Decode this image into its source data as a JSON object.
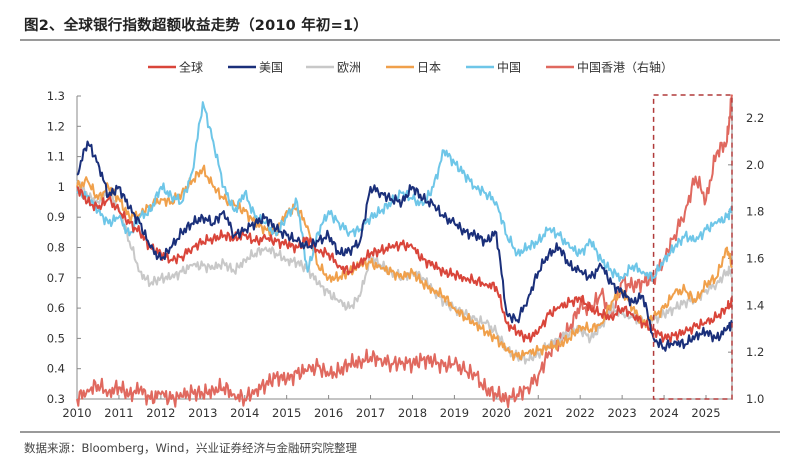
{
  "title": "图2、全球银行指数超额收益走势（2010 年初=1）",
  "source": "数据来源：Bloomberg，Wind，兴业证券经济与金融研究院整理",
  "chart_data": {
    "type": "line",
    "title": "图2、全球银行指数超额收益走势（2010 年初=1）",
    "xlabel": "",
    "ylabel": "",
    "x_ticks": [
      "2010",
      "2011",
      "2012",
      "2013",
      "2014",
      "2015",
      "2016",
      "2017",
      "2018",
      "2019",
      "2020",
      "2021",
      "2022",
      "2023",
      "2024",
      "2025"
    ],
    "xlim": [
      2010,
      2025.62
    ],
    "ylim_left": [
      0.3,
      1.3
    ],
    "yticks_left": [
      "0.3",
      "0.4",
      "0.5",
      "0.6",
      "0.7",
      "0.8",
      "0.9",
      "1",
      "1.1",
      "1.2",
      "1.3"
    ],
    "ylim_right": [
      1.0,
      2.2
    ],
    "yticks_right": [
      "1.0",
      "1.2",
      "1.4",
      "1.6",
      "1.8",
      "2.0",
      "2.2"
    ],
    "legend_position": "top-center",
    "grid": false,
    "highlight_box": {
      "x_range": [
        2023.75,
        2025.62
      ],
      "style": "dashed",
      "color": "#b03a3a"
    },
    "x": [
      2010.0,
      2010.25,
      2010.5,
      2010.75,
      2011.0,
      2011.25,
      2011.5,
      2011.75,
      2012.0,
      2012.25,
      2012.5,
      2012.75,
      2013.0,
      2013.25,
      2013.5,
      2013.75,
      2014.0,
      2014.25,
      2014.5,
      2014.75,
      2015.0,
      2015.25,
      2015.5,
      2015.75,
      2016.0,
      2016.25,
      2016.5,
      2016.75,
      2017.0,
      2017.25,
      2017.5,
      2017.75,
      2018.0,
      2018.25,
      2018.5,
      2018.75,
      2019.0,
      2019.25,
      2019.5,
      2019.75,
      2020.0,
      2020.25,
      2020.5,
      2020.75,
      2021.0,
      2021.25,
      2021.5,
      2021.75,
      2022.0,
      2022.25,
      2022.5,
      2022.75,
      2023.0,
      2023.25,
      2023.5,
      2023.75,
      2024.0,
      2024.25,
      2024.5,
      2024.75,
      2025.0,
      2025.25,
      2025.5,
      2025.62
    ],
    "series": [
      {
        "name": "全球",
        "axis": "left",
        "color": "#d9453a",
        "values": [
          1.0,
          0.95,
          0.93,
          0.96,
          0.92,
          0.88,
          0.85,
          0.8,
          0.78,
          0.76,
          0.77,
          0.8,
          0.82,
          0.83,
          0.84,
          0.83,
          0.84,
          0.82,
          0.83,
          0.82,
          0.81,
          0.8,
          0.83,
          0.79,
          0.78,
          0.74,
          0.72,
          0.75,
          0.78,
          0.79,
          0.8,
          0.81,
          0.8,
          0.76,
          0.74,
          0.72,
          0.71,
          0.7,
          0.69,
          0.68,
          0.67,
          0.55,
          0.52,
          0.5,
          0.52,
          0.58,
          0.6,
          0.62,
          0.63,
          0.6,
          0.58,
          0.57,
          0.6,
          0.58,
          0.55,
          0.53,
          0.5,
          0.51,
          0.52,
          0.54,
          0.55,
          0.57,
          0.6,
          0.62
        ]
      },
      {
        "name": "美国",
        "axis": "left",
        "color": "#1a2f7a",
        "values": [
          1.04,
          1.15,
          1.08,
          0.97,
          1.0,
          0.93,
          0.88,
          0.8,
          0.76,
          0.8,
          0.85,
          0.88,
          0.9,
          0.88,
          0.92,
          0.84,
          0.86,
          0.88,
          0.9,
          0.86,
          0.84,
          0.82,
          0.8,
          0.82,
          0.84,
          0.78,
          0.79,
          0.82,
          1.0,
          0.98,
          0.96,
          0.95,
          1.0,
          0.96,
          0.94,
          0.9,
          0.88,
          0.85,
          0.84,
          0.82,
          0.85,
          0.58,
          0.56,
          0.63,
          0.72,
          0.78,
          0.8,
          0.74,
          0.72,
          0.7,
          0.74,
          0.68,
          0.65,
          0.62,
          0.64,
          0.5,
          0.47,
          0.49,
          0.48,
          0.51,
          0.52,
          0.5,
          0.53,
          0.55
        ]
      },
      {
        "name": "欧洲",
        "axis": "left",
        "color": "#c8c8c8",
        "values": [
          1.02,
          0.97,
          0.95,
          0.98,
          0.93,
          0.82,
          0.72,
          0.68,
          0.7,
          0.7,
          0.72,
          0.74,
          0.74,
          0.73,
          0.75,
          0.72,
          0.76,
          0.78,
          0.8,
          0.78,
          0.76,
          0.75,
          0.73,
          0.68,
          0.65,
          0.62,
          0.6,
          0.64,
          0.77,
          0.74,
          0.72,
          0.7,
          0.72,
          0.7,
          0.66,
          0.62,
          0.6,
          0.58,
          0.56,
          0.55,
          0.52,
          0.46,
          0.44,
          0.43,
          0.45,
          0.48,
          0.5,
          0.52,
          0.53,
          0.5,
          0.54,
          0.6,
          0.58,
          0.57,
          0.55,
          0.56,
          0.58,
          0.6,
          0.62,
          0.63,
          0.66,
          0.68,
          0.72,
          0.72
        ]
      },
      {
        "name": "日本",
        "axis": "left",
        "color": "#f0a04b",
        "values": [
          1.0,
          1.02,
          0.96,
          1.0,
          0.96,
          0.9,
          0.91,
          0.94,
          0.96,
          0.95,
          0.98,
          1.02,
          1.06,
          1.0,
          0.96,
          0.94,
          0.92,
          0.88,
          0.86,
          0.85,
          0.92,
          0.93,
          0.87,
          0.74,
          0.7,
          0.7,
          0.72,
          0.74,
          0.75,
          0.73,
          0.72,
          0.7,
          0.72,
          0.68,
          0.66,
          0.64,
          0.6,
          0.57,
          0.55,
          0.52,
          0.5,
          0.46,
          0.44,
          0.45,
          0.46,
          0.47,
          0.48,
          0.5,
          0.54,
          0.53,
          0.55,
          0.62,
          0.66,
          0.6,
          0.55,
          0.57,
          0.6,
          0.65,
          0.66,
          0.62,
          0.68,
          0.7,
          0.8,
          0.74
        ]
      },
      {
        "name": "中国",
        "axis": "left",
        "color": "#6ec6e8",
        "values": [
          0.98,
          0.97,
          0.92,
          0.88,
          0.9,
          0.84,
          0.9,
          0.92,
          1.0,
          0.97,
          0.95,
          1.05,
          1.28,
          1.15,
          1.0,
          0.92,
          0.98,
          0.9,
          0.88,
          0.84,
          0.9,
          0.95,
          0.72,
          0.85,
          0.92,
          0.88,
          0.85,
          0.86,
          0.9,
          0.92,
          0.95,
          0.98,
          0.96,
          0.94,
          1.0,
          1.12,
          1.08,
          1.04,
          1.0,
          0.98,
          0.95,
          0.84,
          0.78,
          0.8,
          0.82,
          0.86,
          0.84,
          0.8,
          0.78,
          0.82,
          0.76,
          0.72,
          0.7,
          0.74,
          0.72,
          0.7,
          0.76,
          0.8,
          0.84,
          0.82,
          0.86,
          0.88,
          0.9,
          0.93
        ]
      },
      {
        "name": "中国香港（右轴）",
        "axis": "right",
        "color": "#e0695f",
        "values": [
          1.0,
          1.04,
          1.06,
          1.03,
          1.05,
          1.02,
          1.04,
          1.0,
          1.02,
          1.0,
          1.01,
          1.03,
          1.02,
          1.04,
          1.05,
          1.02,
          1.0,
          1.04,
          1.06,
          1.1,
          1.08,
          1.11,
          1.12,
          1.14,
          1.1,
          1.12,
          1.15,
          1.16,
          1.18,
          1.17,
          1.15,
          1.16,
          1.15,
          1.17,
          1.16,
          1.14,
          1.15,
          1.12,
          1.1,
          1.04,
          1.02,
          1.0,
          1.02,
          1.05,
          1.1,
          1.2,
          1.25,
          1.3,
          1.4,
          1.38,
          1.45,
          1.35,
          1.5,
          1.48,
          1.5,
          1.52,
          1.6,
          1.7,
          1.8,
          1.95,
          1.85,
          2.05,
          2.1,
          2.3
        ]
      }
    ]
  },
  "legend": [
    {
      "label": "全球",
      "color": "#d9453a"
    },
    {
      "label": "美国",
      "color": "#1a2f7a"
    },
    {
      "label": "欧洲",
      "color": "#c8c8c8"
    },
    {
      "label": "日本",
      "color": "#f0a04b"
    },
    {
      "label": "中国",
      "color": "#6ec6e8"
    },
    {
      "label": "中国香港（右轴）",
      "color": "#e0695f"
    }
  ]
}
